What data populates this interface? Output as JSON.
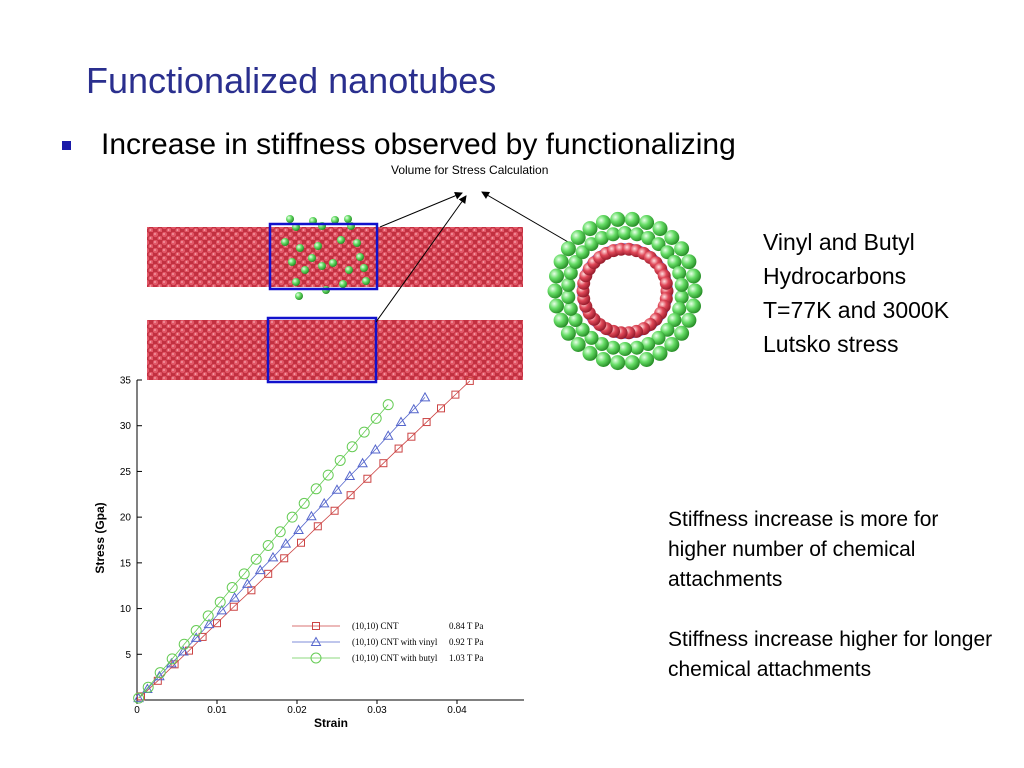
{
  "slide": {
    "title": "Functionalized nanotubes",
    "bullet": "Increase in stiffness observed by functionalizing",
    "caption": "Volume for Stress Calculation",
    "info_lines": [
      "Vinyl and Butyl",
      "Hydrocarbons",
      "T=77K and 3000K",
      "Lutsko stress"
    ],
    "note1": "Stiffness increase is more for  higher number of chemical attachments",
    "note2": "Stiffness increase higher for longer chemical attachments",
    "colors": {
      "title": "#2a2f8e",
      "bullet": "#1a1aa8",
      "tube": "#cc3344",
      "attachment": "#55dd55",
      "box": "#1111cc"
    }
  },
  "chart_data": {
    "type": "scatter",
    "xlabel": "Strain",
    "ylabel": "Stress (Gpa)",
    "xlim": [
      0,
      0.048
    ],
    "ylim": [
      0,
      35
    ],
    "xticks": [
      "0",
      "0.01",
      "0.02",
      "0.03",
      "0.04"
    ],
    "yticks": [
      "5",
      "10",
      "15",
      "20",
      "25",
      "30",
      "35"
    ],
    "series": [
      {
        "name": "(10,10)  CNT",
        "modulus": "0.84  T Pa",
        "marker": "square",
        "color": "#cc4444",
        "x": [
          0.0005,
          0.0026,
          0.0047,
          0.0065,
          0.0082,
          0.01,
          0.0121,
          0.0143,
          0.0164,
          0.0184,
          0.0205,
          0.0226,
          0.0247,
          0.0267,
          0.0288,
          0.0308,
          0.0327,
          0.0343,
          0.0362,
          0.038,
          0.0398,
          0.0416,
          0.0432,
          0.0445
        ],
        "y": [
          0.4,
          2.1,
          3.9,
          5.4,
          6.9,
          8.4,
          10.2,
          12,
          13.8,
          15.5,
          17.2,
          19,
          20.7,
          22.4,
          24.2,
          25.9,
          27.5,
          28.8,
          30.4,
          31.9,
          33.4,
          34.9,
          36.3,
          37.4
        ]
      },
      {
        "name": "(10,10) CNT with vinyl",
        "modulus": "0.92  T Pa",
        "marker": "triangle",
        "color": "#5566cc",
        "x": [
          0.0002,
          0.0013,
          0.0028,
          0.0043,
          0.0058,
          0.0074,
          0.009,
          0.0106,
          0.0122,
          0.0138,
          0.0154,
          0.017,
          0.0186,
          0.0202,
          0.0218,
          0.0234,
          0.025,
          0.0266,
          0.0282,
          0.0298,
          0.0314,
          0.033,
          0.0346,
          0.036
        ],
        "y": [
          0.2,
          1.2,
          2.6,
          4,
          5.3,
          6.8,
          8.3,
          9.8,
          11.2,
          12.7,
          14.2,
          15.6,
          17.1,
          18.6,
          20.1,
          21.5,
          23,
          24.5,
          25.9,
          27.4,
          28.9,
          30.4,
          31.8,
          33.1
        ]
      },
      {
        "name": "(10,10) CNT with butyl",
        "modulus": "1.03  T Pa",
        "marker": "circle",
        "color": "#66cc55",
        "x": [
          0.0002,
          0.0014,
          0.0029,
          0.0044,
          0.0059,
          0.0074,
          0.0089,
          0.0104,
          0.0119,
          0.0134,
          0.0149,
          0.0164,
          0.0179,
          0.0194,
          0.0209,
          0.0224,
          0.0239,
          0.0254,
          0.0269,
          0.0284,
          0.0299,
          0.0314
        ],
        "y": [
          0.2,
          1.4,
          3,
          4.5,
          6.1,
          7.6,
          9.2,
          10.7,
          12.3,
          13.8,
          15.4,
          16.9,
          18.4,
          20,
          21.5,
          23.1,
          24.6,
          26.2,
          27.7,
          29.3,
          30.8,
          32.3
        ]
      }
    ]
  }
}
